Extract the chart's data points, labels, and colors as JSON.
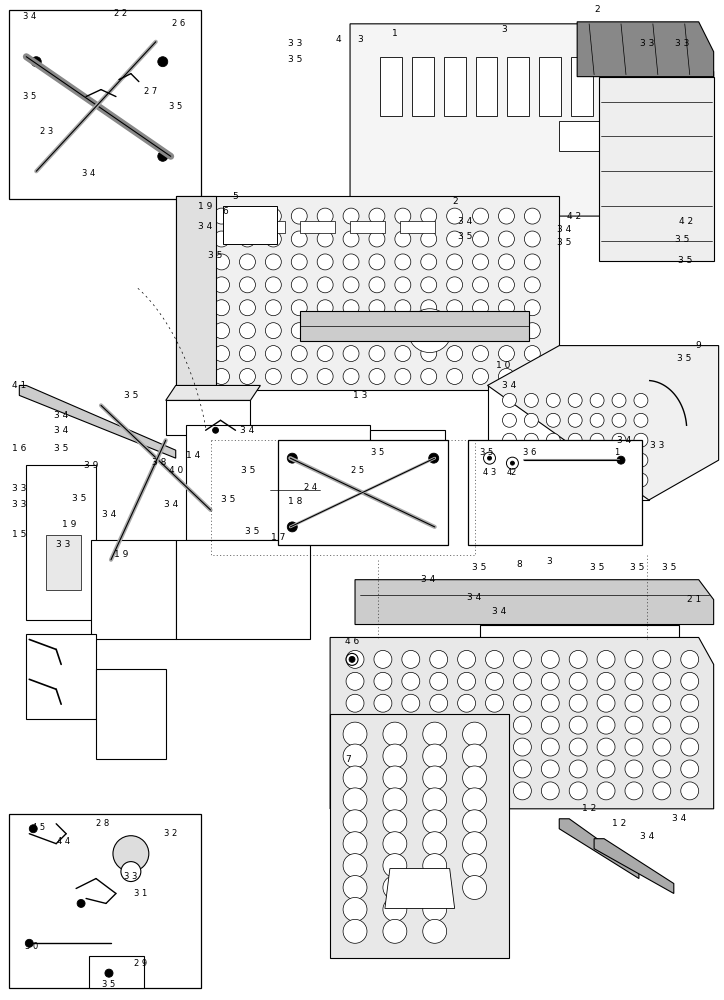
{
  "background_color": "#ffffff",
  "line_color": "#000000",
  "fig_width": 7.24,
  "fig_height": 10.0,
  "dpi": 100
}
